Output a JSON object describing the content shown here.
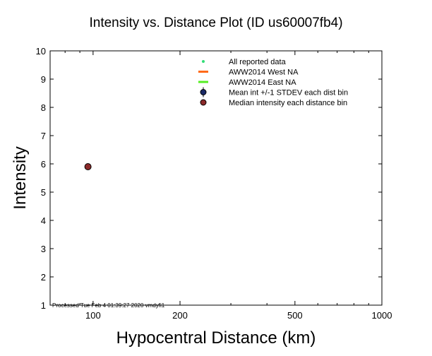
{
  "chart_data": {
    "type": "scatter",
    "title": "Intensity vs. Distance Plot (ID us60007fb4)",
    "xlabel": "Hypocentral Distance (km)",
    "ylabel": "Intensity",
    "xscale": "log",
    "xlim": [
      71,
      1000
    ],
    "ylim": [
      1,
      10
    ],
    "xticks": [
      100,
      200,
      500,
      1000
    ],
    "xtick_labels": [
      "100",
      "200",
      "500",
      "1000"
    ],
    "yticks": [
      1,
      2,
      3,
      4,
      5,
      6,
      7,
      8,
      9,
      10
    ],
    "ytick_labels": [
      "1",
      "2",
      "3",
      "4",
      "5",
      "6",
      "7",
      "8",
      "9",
      "10"
    ],
    "grid": false,
    "legend_placement": "top-right",
    "legend": [
      {
        "label": "All reported data",
        "symbol": "dot",
        "color": "#33dd77"
      },
      {
        "label": "AWW2014 West NA",
        "symbol": "line",
        "color": "#ff6a1a"
      },
      {
        "label": "AWW2014 East NA",
        "symbol": "line",
        "color": "#55ee22"
      },
      {
        "label": "Mean int +/-1 STDEV each dist bin",
        "symbol": "errorbar-dot",
        "color": "#1a2a66"
      },
      {
        "label": "Median intensity each distance bin",
        "symbol": "dot",
        "color": "#8b2a2a"
      }
    ],
    "series": [
      {
        "name": "Median intensity each distance bin",
        "x": [
          96
        ],
        "y": [
          5.9
        ],
        "color": "#8b2a2a"
      }
    ],
    "footnote": "Processed Tue Feb  4 01:39:27 2020 vmdyfi1"
  }
}
